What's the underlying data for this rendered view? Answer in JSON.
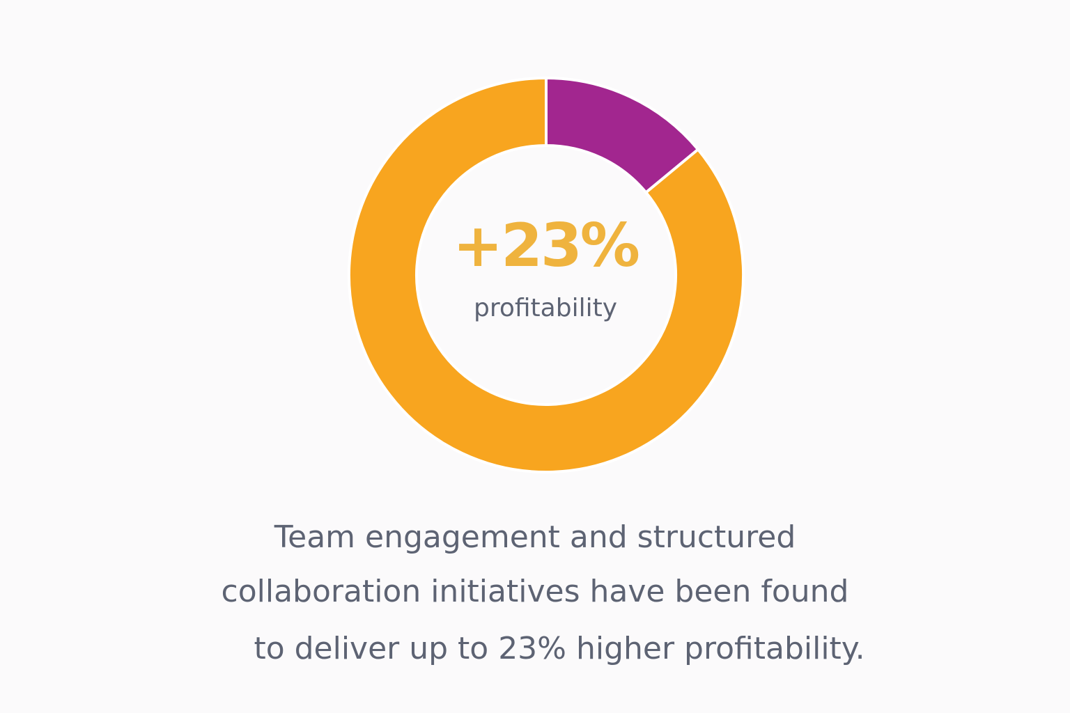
{
  "chart_data": {
    "type": "pie",
    "style": "donut",
    "slices": [
      {
        "value": 14,
        "color": "#a2268f"
      },
      {
        "value": 86,
        "color": "#f8a51f"
      }
    ],
    "start_angle_degrees": 0,
    "center_value": "+23%",
    "center_label": "profitability",
    "legend": "none"
  },
  "caption": {
    "lines": [
      "Team engagement and structured",
      "collaboration initiatives have been found",
      "to deliver up to 23% higher profitability."
    ]
  },
  "colors": {
    "center_value": "#efb33e",
    "text": "#5d6373",
    "background": "#fbfafb"
  }
}
